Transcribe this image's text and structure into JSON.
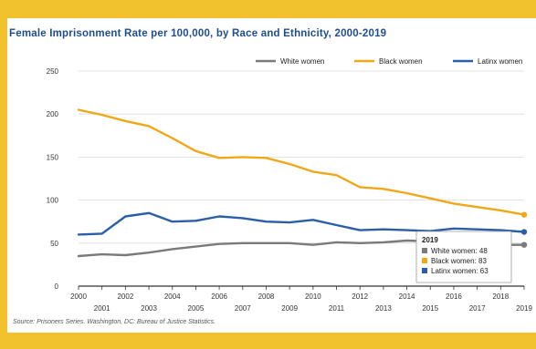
{
  "chart_data": {
    "type": "line",
    "title": "Female Imprisonment Rate per 100,000, by Race and Ethnicity, 2000-2019",
    "source": "Source: Prisoners Series. Washington, DC: Bureau of Justice Statistics.",
    "x": [
      2000,
      2001,
      2002,
      2003,
      2004,
      2005,
      2006,
      2007,
      2008,
      2009,
      2010,
      2011,
      2012,
      2013,
      2014,
      2015,
      2016,
      2017,
      2018,
      2019
    ],
    "xticks_top": [
      "2000",
      "2002",
      "2004",
      "2006",
      "2008",
      "2010",
      "2012",
      "2014",
      "2016",
      "2018"
    ],
    "xticks_bottom": [
      "2001",
      "2003",
      "2005",
      "2007",
      "2009",
      "2011",
      "2013",
      "2015",
      "2017",
      "2019"
    ],
    "ylim": [
      0,
      250
    ],
    "yticks": [
      0,
      50,
      100,
      150,
      200,
      250
    ],
    "grid": true,
    "legend_position": "top-right",
    "series": [
      {
        "name": "White women",
        "color": "#7a7a7a",
        "values": [
          35,
          37,
          36,
          39,
          43,
          46,
          49,
          50,
          50,
          50,
          48,
          51,
          50,
          51,
          53,
          52,
          51,
          49,
          48,
          48
        ]
      },
      {
        "name": "Black women",
        "color": "#f0a818",
        "values": [
          205,
          199,
          192,
          186,
          172,
          157,
          149,
          150,
          149,
          142,
          133,
          129,
          115,
          113,
          108,
          102,
          96,
          92,
          88,
          83
        ]
      },
      {
        "name": "Latinx women",
        "color": "#2a5ea8",
        "values": [
          60,
          61,
          81,
          85,
          75,
          76,
          81,
          79,
          75,
          74,
          77,
          71,
          65,
          66,
          65,
          64,
          67,
          66,
          65,
          63
        ]
      }
    ],
    "callout": {
      "heading": "2019",
      "items": [
        {
          "label": "White women: 48",
          "color": "#7a7a7a"
        },
        {
          "label": "Black women: 83",
          "color": "#f0a818"
        },
        {
          "label": "Latinx women: 63",
          "color": "#2a5ea8"
        }
      ]
    }
  }
}
